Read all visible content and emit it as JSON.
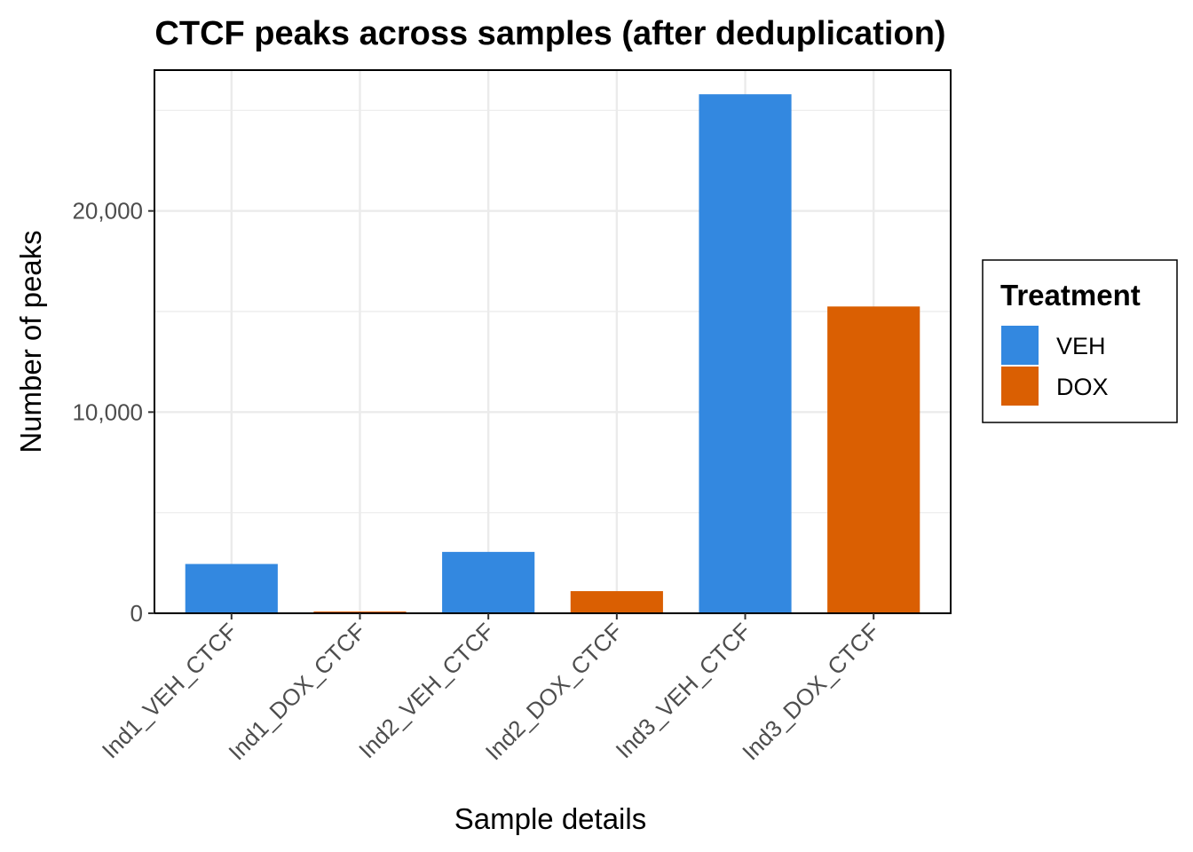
{
  "chart_data": {
    "type": "bar",
    "title": "CTCF peaks across samples (after deduplication)",
    "xlabel": "Sample details",
    "ylabel": "Number of peaks",
    "categories": [
      "Ind1_VEH_CTCF",
      "Ind1_DOX_CTCF",
      "Ind2_VEH_CTCF",
      "Ind2_DOX_CTCF",
      "Ind3_VEH_CTCF",
      "Ind3_DOX_CTCF"
    ],
    "values": [
      2450,
      80,
      3050,
      1100,
      25800,
      15250
    ],
    "treatment": [
      "VEH",
      "DOX",
      "VEH",
      "DOX",
      "VEH",
      "DOX"
    ],
    "ylim": [
      0,
      27000
    ],
    "yticks": [
      0,
      10000,
      20000
    ],
    "ytick_labels": [
      "0",
      "10,000",
      "20,000"
    ],
    "grid": true,
    "legend": {
      "title": "Treatment",
      "placement": "right",
      "entries": [
        {
          "name": "VEH",
          "color": "#3388E0"
        },
        {
          "name": "DOX",
          "color": "#DA5F02"
        }
      ]
    }
  }
}
